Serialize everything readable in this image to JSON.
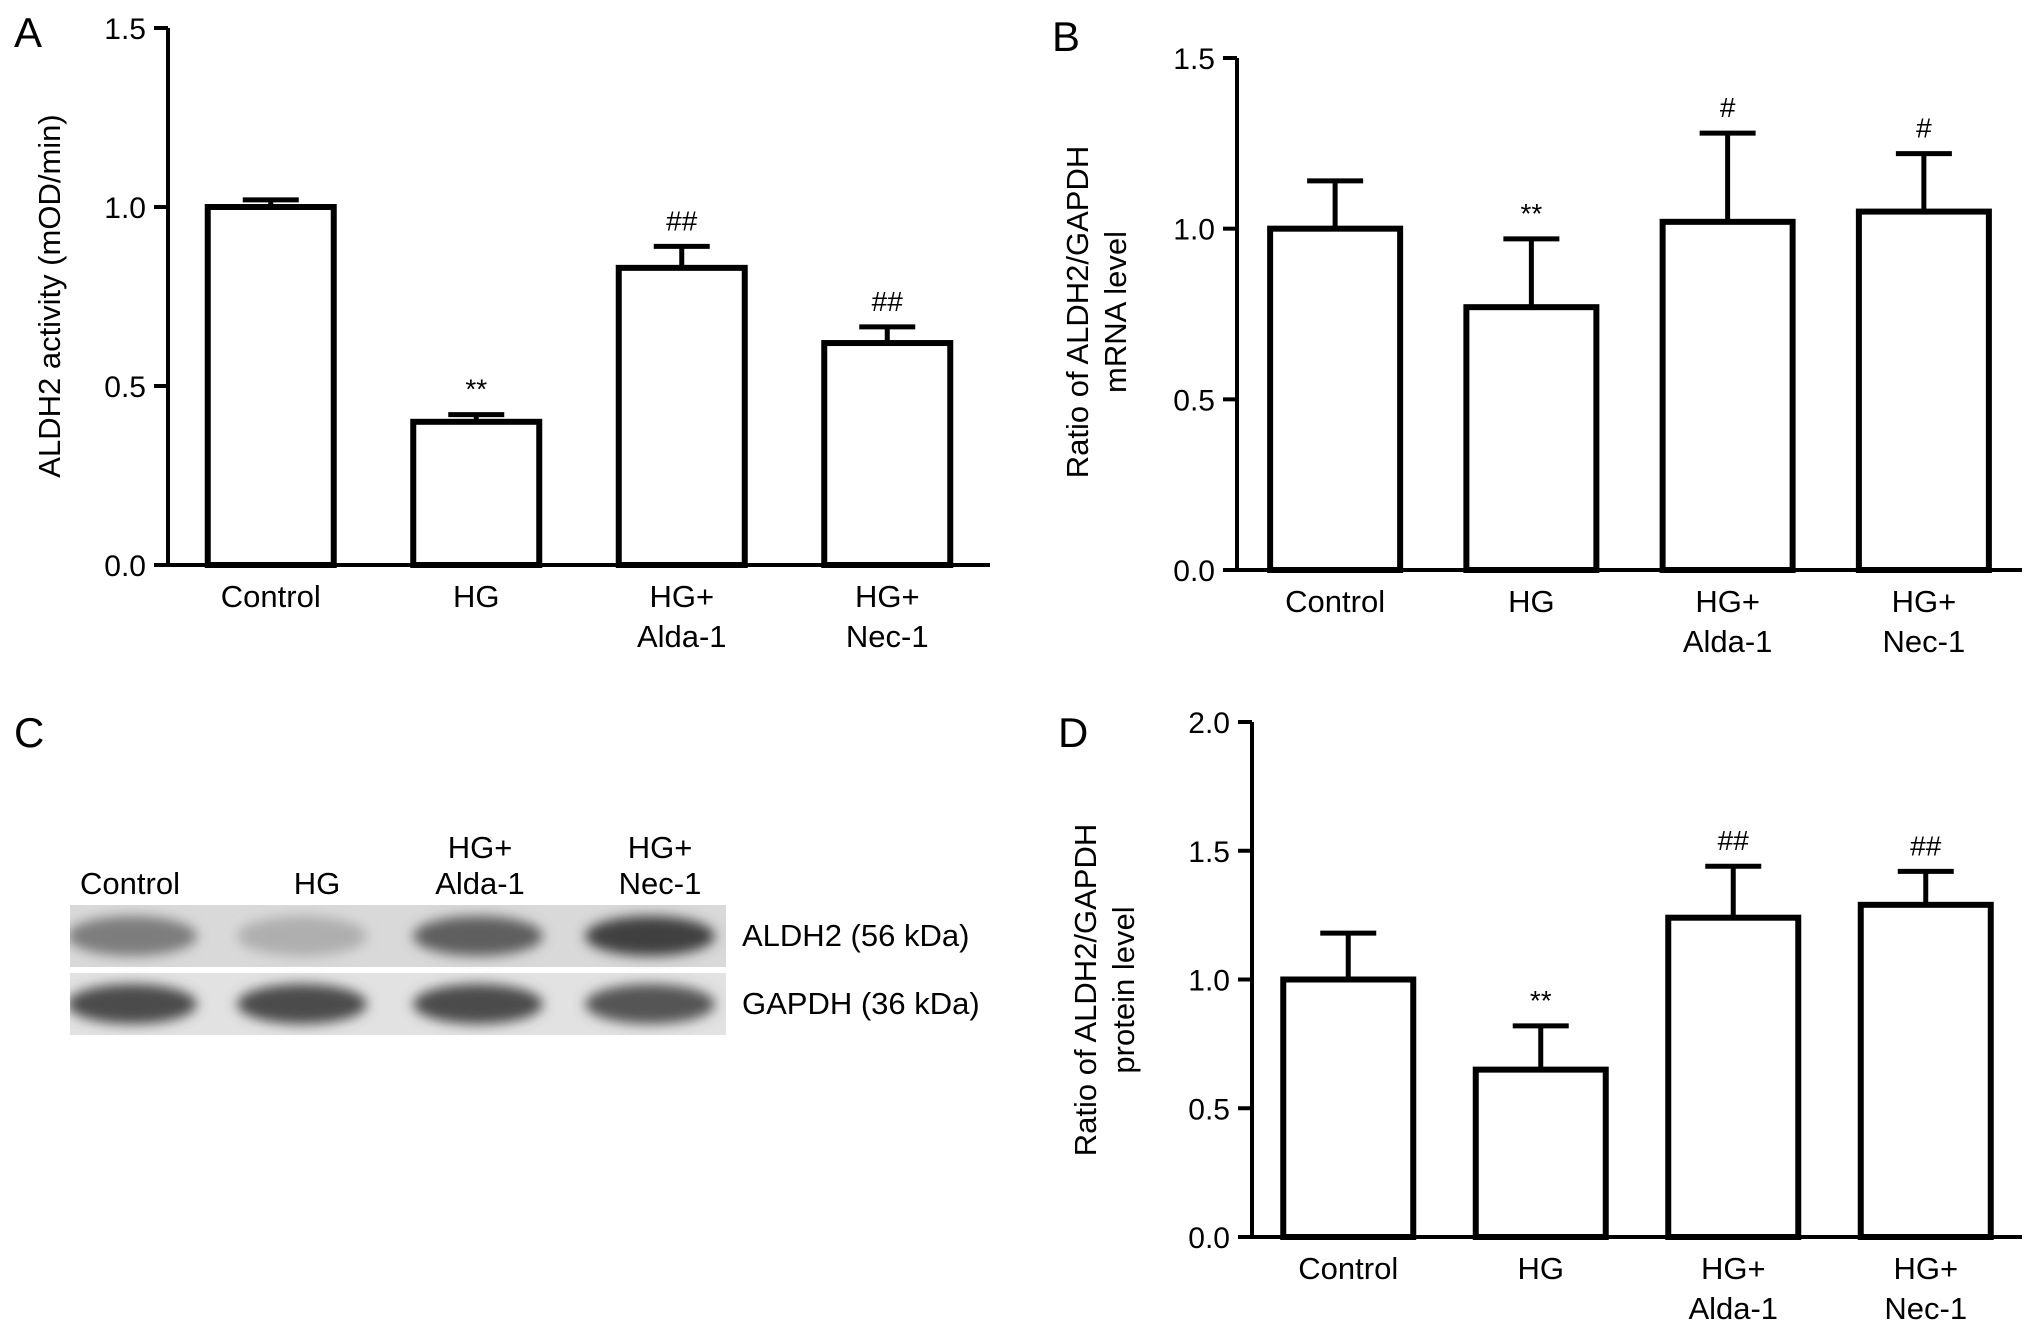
{
  "figure": {
    "panels": [
      {
        "letter": "A"
      },
      {
        "letter": "B"
      },
      {
        "letter": "C"
      },
      {
        "letter": "D"
      }
    ]
  },
  "chart_data": [
    {
      "panel": "A",
      "type": "bar",
      "categories": [
        "Control",
        "HG",
        "HG+\nAlda-1",
        "HG+\nNec-1"
      ],
      "values": [
        1.0,
        0.4,
        0.83,
        0.62
      ],
      "errors": [
        0.02,
        0.02,
        0.06,
        0.045
      ],
      "annotations": [
        "",
        "**",
        "##",
        "##"
      ],
      "title": "",
      "xlabel": "",
      "ylabel": "ALDH2 activity (mOD/min)",
      "ylim": [
        0,
        1.5
      ],
      "yticks": [
        "0.0",
        "0.5",
        "1.0",
        "1.5"
      ],
      "grid": false,
      "bar_fill": "#ffffff",
      "bar_stroke": "#000000"
    },
    {
      "panel": "B",
      "type": "bar",
      "categories": [
        "Control",
        "HG",
        "HG+\nAlda-1",
        "HG+\nNec-1"
      ],
      "values": [
        1.0,
        0.77,
        1.02,
        1.05
      ],
      "errors": [
        0.14,
        0.2,
        0.26,
        0.17
      ],
      "annotations": [
        "",
        "**",
        "#",
        "#"
      ],
      "title": "",
      "xlabel": "",
      "ylabel": "Ratio of ALDH2/GAPDH\nmRNA level",
      "ylim": [
        0,
        1.5
      ],
      "yticks": [
        "0.0",
        "0.5",
        "1.0",
        "1.5"
      ],
      "grid": false,
      "bar_fill": "#ffffff",
      "bar_stroke": "#000000"
    },
    {
      "panel": "D",
      "type": "bar",
      "categories": [
        "Control",
        "HG",
        "HG+\nAlda-1",
        "HG+\nNec-1"
      ],
      "values": [
        1.0,
        0.65,
        1.24,
        1.29
      ],
      "errors": [
        0.18,
        0.17,
        0.2,
        0.13
      ],
      "annotations": [
        "",
        "**",
        "##",
        "##"
      ],
      "title": "",
      "xlabel": "",
      "ylabel": "Ratio of ALDH2/GAPDH\nprotein level",
      "ylim": [
        0,
        2.0
      ],
      "yticks": [
        "0.0",
        "0.5",
        "1.0",
        "1.5",
        "2.0"
      ],
      "grid": false,
      "bar_fill": "#ffffff",
      "bar_stroke": "#000000"
    }
  ],
  "western_blot": {
    "panel": "C",
    "lane_labels": [
      "Control",
      "HG",
      "HG+\nAlda-1",
      "HG+\nNec-1"
    ],
    "bands": [
      {
        "label": "ALDH2 (56 kDa)",
        "intensities": [
          0.55,
          0.3,
          0.7,
          0.85
        ]
      },
      {
        "label": "GAPDH (36 kDa)",
        "intensities": [
          0.8,
          0.8,
          0.8,
          0.75
        ]
      }
    ]
  }
}
